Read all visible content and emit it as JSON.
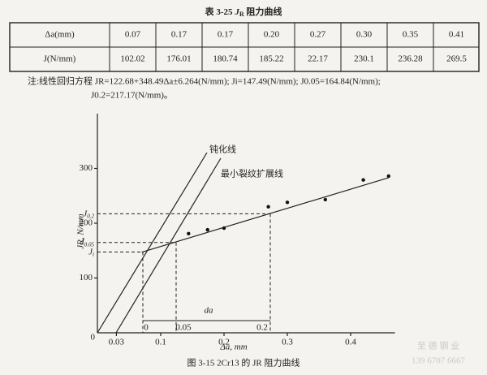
{
  "caption": {
    "prefix": "表 3-25",
    "symbol": "J",
    "sub": "R",
    "suffix": "阻力曲线"
  },
  "table": {
    "rows": [
      [
        "Δa(mm)",
        "0.07",
        "0.17",
        "0.17",
        "0.20",
        "0.27",
        "0.30",
        "0.35",
        "0.41"
      ],
      [
        "J(N/mm)",
        "102.02",
        "176.01",
        "180.74",
        "185.22",
        "22.17",
        "230.1",
        "236.28",
        "269.5"
      ]
    ]
  },
  "note": {
    "lines": [
      "注:线性回归方程  JR=122.68+348.49Δa±6.264(N/mm); Ji=147.49(N/mm); J0.05=164.84(N/mm);",
      "J0.2=217.17(N/mm)。"
    ]
  },
  "figure": {
    "type": "scatter",
    "xlim": [
      0,
      0.47
    ],
    "ylim": [
      0,
      400
    ],
    "yticks": [
      100,
      200,
      300
    ],
    "xticks": [
      0.03,
      0.1,
      0.2,
      0.3,
      0.4
    ],
    "origin_label": "0",
    "x": [
      0.144,
      0.174,
      0.2,
      0.27,
      0.3,
      0.36,
      0.42,
      0.46
    ],
    "y": [
      181,
      188,
      191,
      230,
      238,
      243,
      279,
      286
    ],
    "ylabel": "JR, N/mm",
    "xlabel": "Δa, mm",
    "levels": [
      {
        "symbol": "J",
        "sub": "0.2",
        "value": 217.17
      },
      {
        "symbol": "J",
        "sub": "0.05",
        "value": 164.84
      },
      {
        "symbol": "J",
        "sub": "i",
        "value": 147.49
      }
    ],
    "blunt_label": "钝化线",
    "growth_label": "最小裂纹扩展线",
    "da_label": "da",
    "da_ticks": [
      "0",
      "0.05",
      "0.2"
    ],
    "caption": "图 3-15  2Cr13 的 JR 阻力曲线"
  },
  "watermark": [
    "至 德 钢 业",
    "139 6707 6667"
  ]
}
